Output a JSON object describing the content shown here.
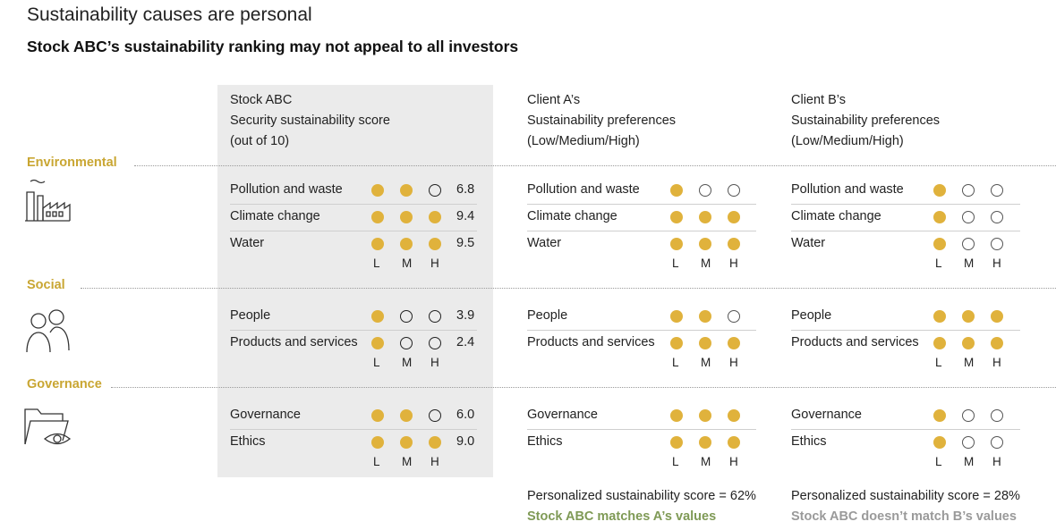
{
  "title": "Sustainability causes are personal",
  "subtitle": "Stock ABC’s sustainability ranking may not appeal to all investors",
  "colors": {
    "filled": "#e0b23c",
    "section": "#c9a632",
    "match": "#7f9a56",
    "nomatch": "#9a9a9a"
  },
  "columns": {
    "stock": {
      "lines": [
        "Stock ABC",
        "Security sustainability score",
        "(out of 10)"
      ]
    },
    "clientA": {
      "lines": [
        "Client A’s",
        "Sustainability preferences",
        "(Low/Medium/High)"
      ]
    },
    "clientB": {
      "lines": [
        "Client B’s",
        "Sustainability preferences",
        "(Low/Medium/High)"
      ]
    }
  },
  "lmh": [
    "L",
    "M",
    "H"
  ],
  "sections": [
    {
      "name": "Environmental",
      "icon": "factory-icon",
      "rows": [
        {
          "label": "Pollution and waste",
          "stock_level": 2,
          "stock_score": "6.8",
          "a_level": 1,
          "b_level": 1
        },
        {
          "label": "Climate change",
          "stock_level": 3,
          "stock_score": "9.4",
          "a_level": 3,
          "b_level": 1
        },
        {
          "label": "Water",
          "stock_level": 3,
          "stock_score": "9.5",
          "a_level": 3,
          "b_level": 1
        }
      ]
    },
    {
      "name": "Social",
      "icon": "people-icon",
      "rows": [
        {
          "label": "People",
          "stock_level": 1,
          "stock_score": "3.9",
          "a_level": 2,
          "b_level": 3
        },
        {
          "label": "Products and services",
          "stock_level": 1,
          "stock_score": "2.4",
          "a_level": 3,
          "b_level": 3
        }
      ]
    },
    {
      "name": "Governance",
      "icon": "folder-eye-icon",
      "rows": [
        {
          "label": "Governance",
          "stock_level": 2,
          "stock_score": "6.0",
          "a_level": 3,
          "b_level": 1
        },
        {
          "label": "Ethics",
          "stock_level": 3,
          "stock_score": "9.0",
          "a_level": 3,
          "b_level": 1
        }
      ]
    }
  ],
  "footer": {
    "a_score": "Personalized sustainability score = 62%",
    "a_match": "Stock ABC matches A’s values",
    "b_score": "Personalized sustainability score = 28%",
    "b_match": "Stock ABC doesn’t match B’s values"
  }
}
